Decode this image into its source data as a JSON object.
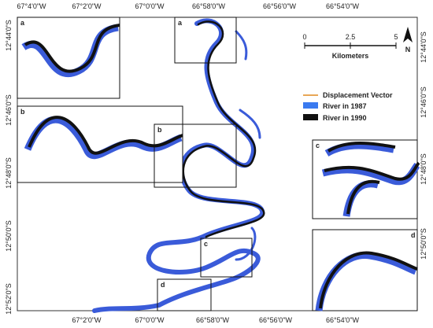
{
  "top_labels": [
    "67°4'0\"W",
    "67°2'0\"W",
    "67°0'0\"W",
    "66°58'0\"W",
    "66°56'0\"W",
    "66°54'0\"W"
  ],
  "bottom_labels": [
    "67°2'0\"W",
    "67°0'0\"W",
    "66°58'0\"W",
    "66°56'0\"W",
    "66°54'0\"W"
  ],
  "left_labels": [
    "12°44'0\"S",
    "12°46'0\"S",
    "12°48'0\"S",
    "12°50'0\"S",
    "12°52'0\"S"
  ],
  "right_labels": [
    "12°44'0\"S",
    "12°46'0\"S",
    "12°48'0\"S",
    "12°50'0\"S"
  ],
  "scale_bar": {
    "ticks": [
      "0",
      "2.5",
      "5"
    ],
    "unit": "Kilometers"
  },
  "north": "N",
  "legend": {
    "items": [
      "Displacement Vector",
      "River in 1987",
      "River in 1990"
    ]
  },
  "insets": [
    "a",
    "b",
    "c",
    "d"
  ],
  "boxes": [
    "a",
    "b",
    "c",
    "d"
  ]
}
